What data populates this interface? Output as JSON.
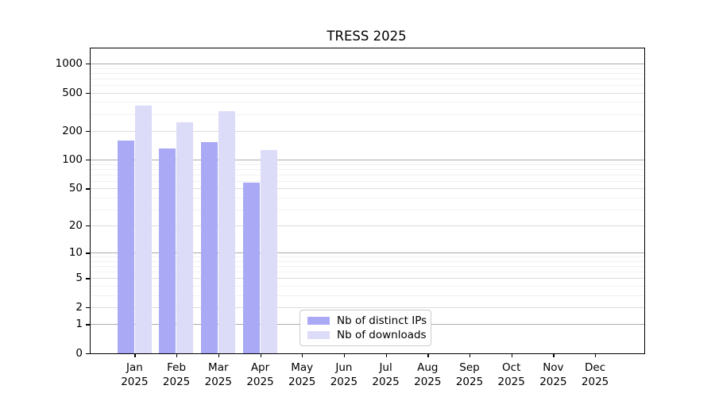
{
  "title": "TRESS 2025",
  "chart_data": {
    "type": "bar",
    "title": "TRESS 2025",
    "xlabel": "",
    "ylabel": "",
    "categories": [
      "Jan 2025",
      "Feb 2025",
      "Mar 2025",
      "Apr 2025",
      "May 2025",
      "Jun 2025",
      "Jul 2025",
      "Aug 2025",
      "Sep 2025",
      "Oct 2025",
      "Nov 2025",
      "Dec 2025"
    ],
    "month_labels": [
      "Jan",
      "Feb",
      "Mar",
      "Apr",
      "May",
      "Jun",
      "Jul",
      "Aug",
      "Sep",
      "Oct",
      "Nov",
      "Dec"
    ],
    "year_label": "2025",
    "series": [
      {
        "name": "Nb of distinct IPs",
        "color": "#a9a9f5",
        "values": [
          160,
          131,
          152,
          58,
          0,
          0,
          0,
          0,
          0,
          0,
          0,
          0
        ]
      },
      {
        "name": "Nb of downloads",
        "color": "#dcdcf9",
        "values": [
          364,
          246,
          319,
          127,
          0,
          0,
          0,
          0,
          0,
          0,
          0,
          0
        ]
      }
    ],
    "y_axis": {
      "scale": "log10(1+value)",
      "tick_values": [
        0,
        1,
        2,
        5,
        10,
        20,
        50,
        100,
        200,
        500,
        1000
      ],
      "minor_tick_values": [
        3,
        4,
        6,
        7,
        8,
        9,
        30,
        40,
        60,
        70,
        80,
        90,
        300,
        400,
        600,
        700,
        800,
        900
      ],
      "ylim": [
        0,
        1430
      ]
    },
    "grid": true,
    "legend_position": "lower center",
    "colors": {
      "grid_power_of_ten": "#ababab",
      "grid_labeled": "#dcdcdc",
      "grid_minor": "#f1f1f1",
      "axis": "#000000"
    }
  },
  "legend": {
    "items": [
      {
        "label": "Nb of distinct IPs",
        "color": "#a9a9f5"
      },
      {
        "label": "Nb of downloads",
        "color": "#dcdcf9"
      }
    ]
  }
}
